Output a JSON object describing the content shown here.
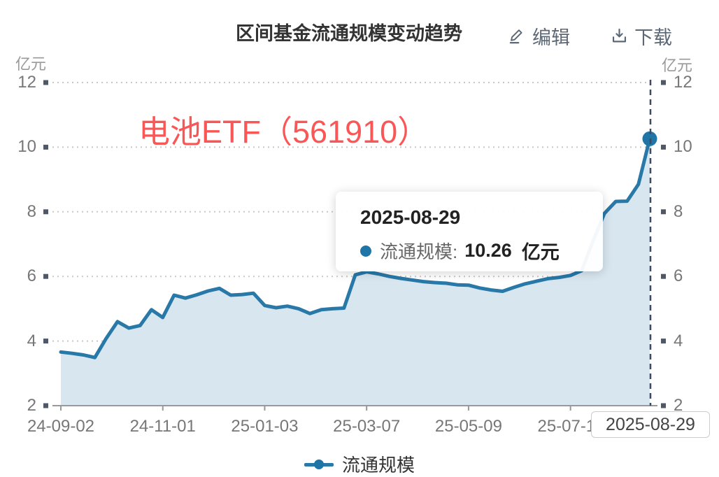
{
  "header": {
    "title": "区间基金流通规模变动趋势",
    "edit_label": "编辑",
    "download_label": "下载"
  },
  "axes": {
    "unit_left": "亿元",
    "unit_right": "亿元"
  },
  "watermark": {
    "text": "电池ETF（561910）"
  },
  "tooltip": {
    "date": "2025-08-29",
    "series_label": "流通规模:",
    "value": "10.26",
    "unit": "亿元"
  },
  "axis_pointer": {
    "label": "2025-08-29"
  },
  "legend": {
    "label": "流通规模"
  },
  "colors": {
    "line": "#2878a8",
    "area": "#d8e6f0",
    "dot": "#1f76a6",
    "grid": "#c8c8c8",
    "axis": "#999999",
    "tick_square": "#4e5866",
    "pointer_line": "#3f4a5e",
    "axis_label": "#777777",
    "watermark": "#fb5656",
    "button": "#5d6876"
  },
  "chart_data": {
    "type": "area",
    "title": "区间基金流通规模变动趋势",
    "unit": "亿元",
    "ylim": [
      2,
      12
    ],
    "y_ticks": [
      2,
      4,
      6,
      8,
      10,
      12
    ],
    "x_tick_labels": [
      "24-09-02",
      "24-11-01",
      "25-01-03",
      "25-03-07",
      "25-05-09",
      "25-07-11"
    ],
    "x_tick_indices": [
      0,
      9,
      18,
      27,
      36,
      45
    ],
    "grid": "horizontal-dotted",
    "legend_position": "bottom",
    "highlight": {
      "date": "2025-08-29",
      "value": 10.26,
      "index": 52
    },
    "series": [
      {
        "name": "流通规模",
        "values": [
          3.66,
          3.62,
          3.57,
          3.49,
          4.08,
          4.6,
          4.4,
          4.48,
          4.97,
          4.73,
          5.42,
          5.33,
          5.43,
          5.55,
          5.63,
          5.42,
          5.44,
          5.48,
          5.1,
          5.03,
          5.08,
          5.0,
          4.85,
          4.97,
          5.0,
          5.02,
          6.05,
          6.14,
          6.08,
          6.0,
          5.94,
          5.89,
          5.84,
          5.81,
          5.79,
          5.74,
          5.73,
          5.64,
          5.58,
          5.54,
          5.66,
          5.77,
          5.85,
          5.93,
          5.97,
          6.03,
          6.18,
          7.1,
          7.95,
          8.32,
          8.33,
          8.85,
          10.26
        ]
      }
    ]
  }
}
